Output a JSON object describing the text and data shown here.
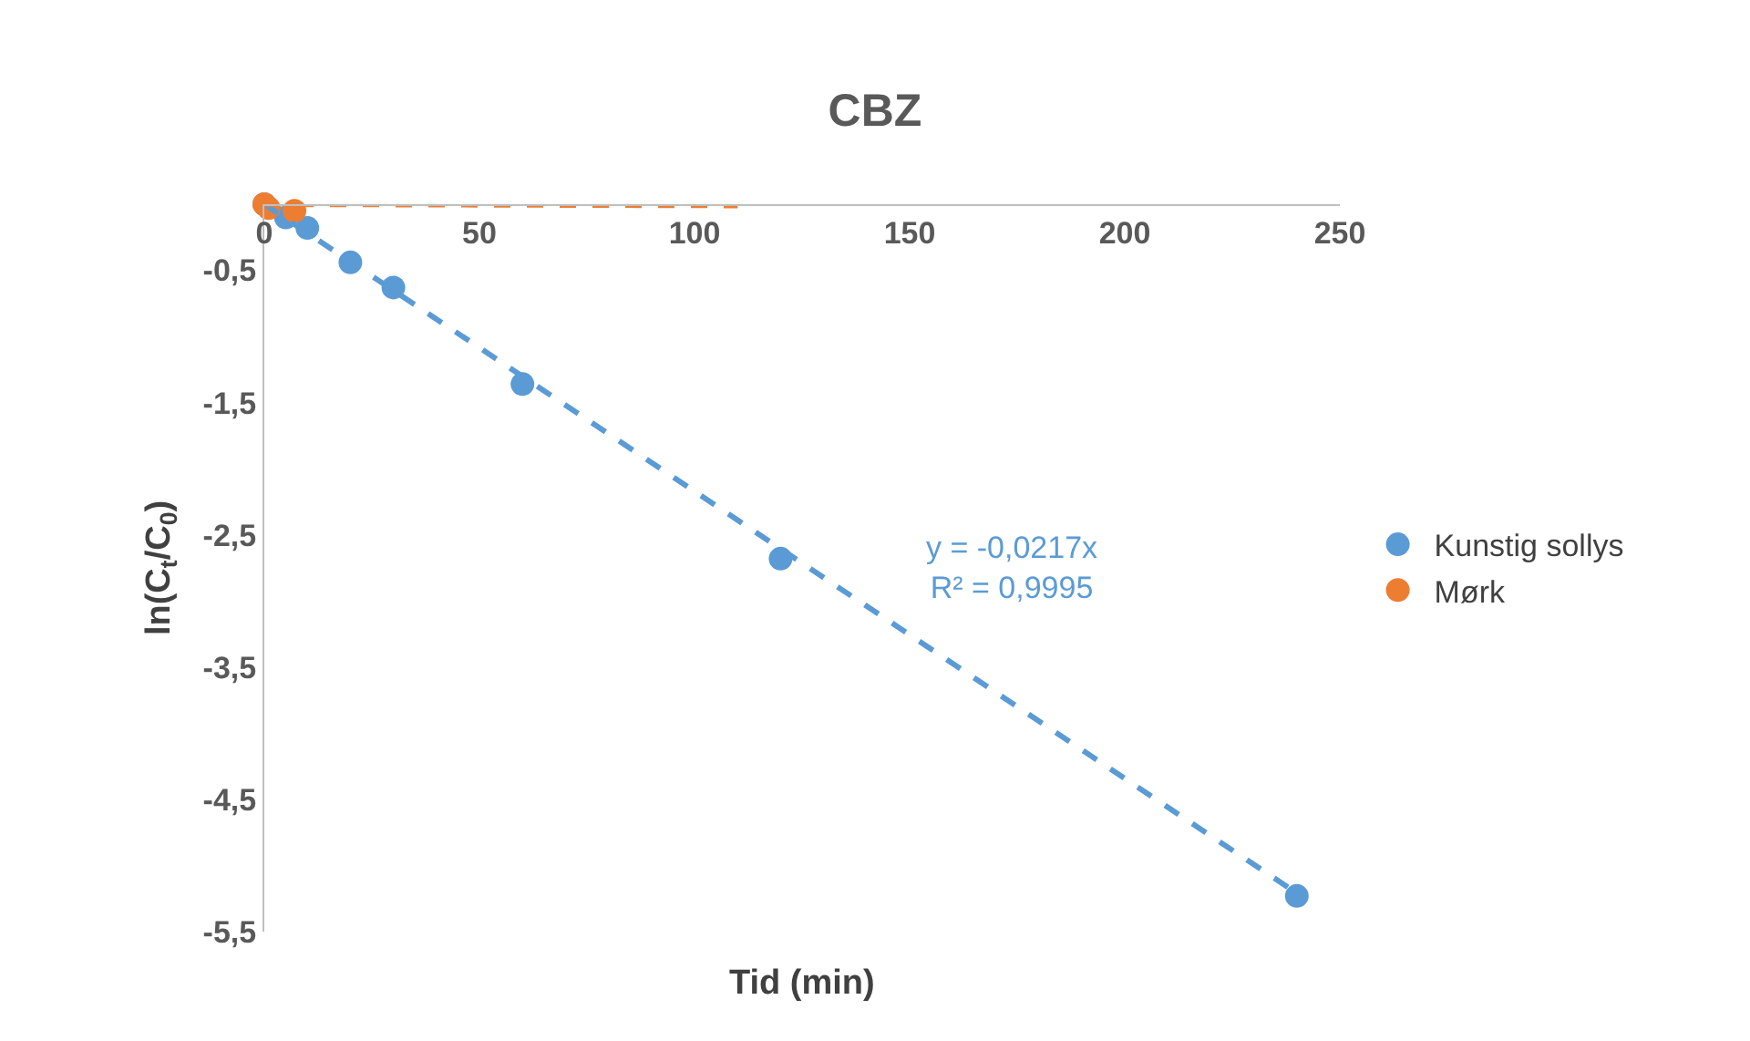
{
  "chart_data": {
    "type": "scatter",
    "title": "CBZ",
    "xlabel": "Tid (min)",
    "ylabel": "ln(C$_{t}$/C$_{0}$)",
    "xlim": [
      0,
      250
    ],
    "xticks": [
      0,
      50,
      100,
      150,
      200,
      250
    ],
    "ylim": [
      -5.5,
      0
    ],
    "yticks": [
      {
        "value": -5.5,
        "label": "-5,5"
      },
      {
        "value": -4.5,
        "label": "-4,5"
      },
      {
        "value": -3.5,
        "label": "-3,5"
      },
      {
        "value": -2.5,
        "label": "-2,5"
      },
      {
        "value": -1.5,
        "label": "-1,5"
      },
      {
        "value": -0.5,
        "label": "-0,5"
      }
    ],
    "legend": "right",
    "marker": "circle",
    "series": [
      {
        "name": "Kunstig sollys",
        "color": "#5b9bd5",
        "x": [
          0,
          5,
          10,
          20,
          30,
          60,
          120,
          240
        ],
        "values": [
          0,
          -0.1,
          -0.18,
          -0.44,
          -0.63,
          -1.36,
          -2.68,
          -5.23
        ]
      },
      {
        "name": "Mørk",
        "color": "#ed7d31",
        "x": [
          0,
          1,
          7
        ],
        "values": [
          0,
          -0.03,
          -0.05
        ]
      },
      {
        "type": "line",
        "marker": "none",
        "line_style": "dashed",
        "color": "#5b9bd5",
        "x": [
          0,
          240
        ],
        "values": [
          0,
          -5.21
        ]
      },
      {
        "type": "line",
        "marker": "none",
        "line_style": "dashed",
        "color": "#ed7d31",
        "x": [
          0,
          110
        ],
        "values": [
          0,
          -0.01
        ]
      }
    ],
    "annotations": [
      "y = -0,0217x\nR² = 0,9995"
    ]
  }
}
